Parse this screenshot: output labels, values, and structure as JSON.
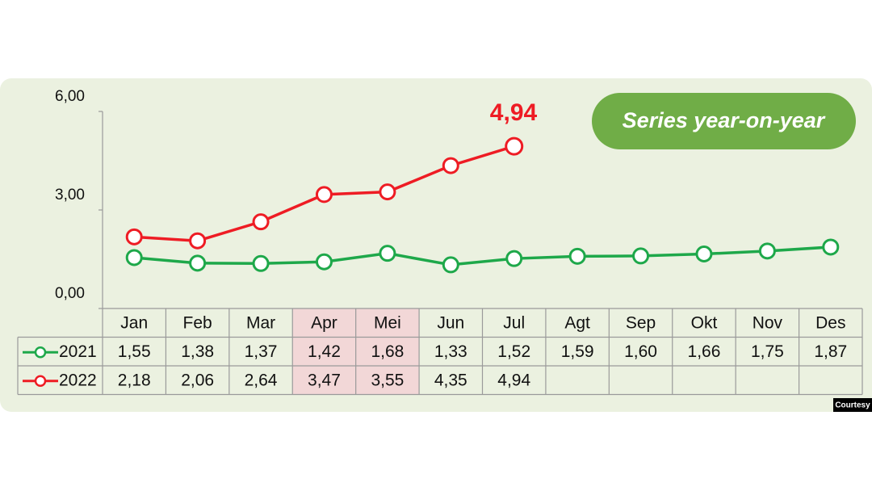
{
  "chart_data": {
    "type": "line",
    "badge": "Series year-on-year",
    "annotation": "4,94",
    "credit": "Courtesy",
    "categories": [
      "Jan",
      "Feb",
      "Mar",
      "Apr",
      "Mei",
      "Jun",
      "Jul",
      "Agt",
      "Sep",
      "Okt",
      "Nov",
      "Des"
    ],
    "highlight": [
      "Apr",
      "Mei"
    ],
    "series": [
      {
        "name": "2021",
        "color": "#1ea84a",
        "values": [
          1.55,
          1.38,
          1.37,
          1.42,
          1.68,
          1.33,
          1.52,
          1.59,
          1.6,
          1.66,
          1.75,
          1.87
        ],
        "value_labels": [
          "1,55",
          "1,38",
          "1,37",
          "1,42",
          "1,68",
          "1,33",
          "1,52",
          "1,59",
          "1,60",
          "1,66",
          "1,75",
          "1,87"
        ]
      },
      {
        "name": "2022",
        "color": "#ee1c24",
        "values": [
          2.18,
          2.06,
          2.64,
          3.47,
          3.55,
          4.35,
          4.94,
          null,
          null,
          null,
          null,
          null
        ],
        "value_labels": [
          "2,18",
          "2,06",
          "2,64",
          "3,47",
          "3,55",
          "4,35",
          "4,94",
          null,
          null,
          null,
          null,
          null
        ]
      }
    ],
    "ylim": [
      0,
      6
    ],
    "yticks": [
      {
        "value": 0,
        "label": "0,00"
      },
      {
        "value": 3,
        "label": "3,00"
      },
      {
        "value": 6,
        "label": "6,00"
      }
    ]
  }
}
